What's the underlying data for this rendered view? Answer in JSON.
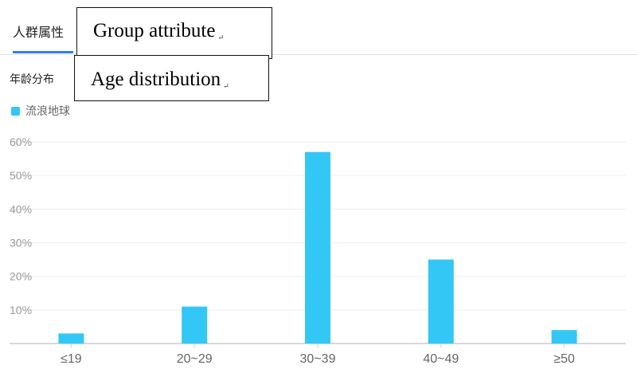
{
  "tab": {
    "label": "人群属性"
  },
  "section": {
    "title": "年龄分布"
  },
  "annotations": [
    {
      "text": "Group attribute",
      "mark": "↵"
    },
    {
      "text": "Age distribution",
      "mark": "↵"
    }
  ],
  "colors": {
    "bar": "#33c7f5",
    "accent": "#2f7bf5",
    "grid": "#eeeeee",
    "axis": "#cccccc"
  },
  "chart_data": {
    "type": "bar",
    "title": "",
    "xlabel": "",
    "ylabel": "",
    "categories": [
      "≤19",
      "20~29",
      "30~39",
      "40~49",
      "≥50"
    ],
    "series": [
      {
        "name": "流浪地球",
        "values": [
          3,
          11,
          57,
          25,
          4
        ]
      }
    ],
    "ylim": [
      0,
      60
    ],
    "yticks": [
      {
        "value": 10,
        "label": "10%"
      },
      {
        "value": 20,
        "label": "20%"
      },
      {
        "value": 30,
        "label": "30%"
      },
      {
        "value": 40,
        "label": "40%"
      },
      {
        "value": 50,
        "label": "50%"
      },
      {
        "value": 60,
        "label": "60%"
      }
    ],
    "grid": true,
    "legend": "top-left"
  }
}
